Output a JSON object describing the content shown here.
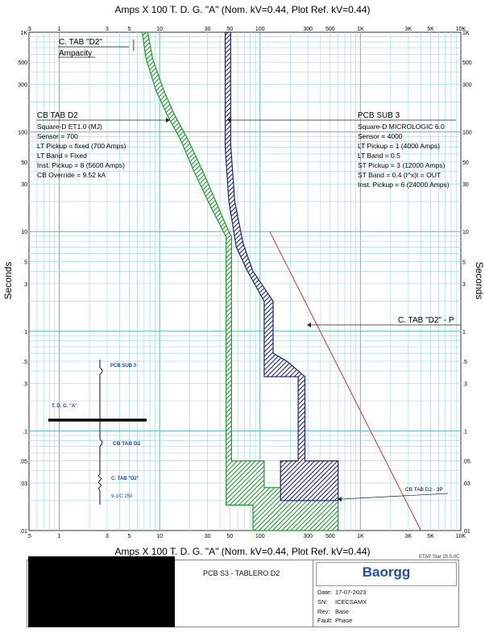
{
  "chart_data": {
    "type": "line",
    "title": "Amps  X  100   T. D. G. \"A\" (Nom. kV=0.44, Plot Ref. kV=0.44)",
    "xlabel": "Amps  X  100   T. D. G. \"A\" (Nom. kV=0.44, Plot Ref. kV=0.44)",
    "ylabel": "Seconds",
    "x_scale": "log",
    "y_scale": "log",
    "xlim": [
      0.5,
      10000
    ],
    "ylim": [
      0.01,
      1000
    ],
    "grid": true,
    "x_tick_labels": [
      {
        "v": 0.5,
        "t": ".5"
      },
      {
        "v": 1,
        "t": "1"
      },
      {
        "v": 3,
        "t": "3"
      },
      {
        "v": 5,
        "t": "5"
      },
      {
        "v": 10,
        "t": "10"
      },
      {
        "v": 30,
        "t": "30"
      },
      {
        "v": 50,
        "t": "50"
      },
      {
        "v": 100,
        "t": "100"
      },
      {
        "v": 300,
        "t": "300"
      },
      {
        "v": 500,
        "t": "500"
      },
      {
        "v": 1000,
        "t": "1K"
      },
      {
        "v": 3000,
        "t": "3K"
      },
      {
        "v": 5000,
        "t": "5K"
      },
      {
        "v": 10000,
        "t": "10K"
      }
    ],
    "y_tick_labels": [
      {
        "v": 1000,
        "t": "1K"
      },
      {
        "v": 500,
        "t": "500"
      },
      {
        "v": 300,
        "t": "300"
      },
      {
        "v": 100,
        "t": "100"
      },
      {
        "v": 50,
        "t": "50"
      },
      {
        "v": 30,
        "t": "30"
      },
      {
        "v": 10,
        "t": "10"
      },
      {
        "v": 5,
        "t": "5"
      },
      {
        "v": 3,
        "t": "3"
      },
      {
        "v": 1,
        "t": "1"
      },
      {
        "v": 0.5,
        "t": ".5"
      },
      {
        "v": 0.3,
        "t": ".3"
      },
      {
        "v": 0.1,
        "t": ".1"
      },
      {
        "v": 0.05,
        "t": ".05"
      },
      {
        "v": 0.03,
        "t": ".03"
      },
      {
        "v": 0.01,
        "t": ".01"
      }
    ],
    "series": [
      {
        "name": "CB TAB D2",
        "color": "#1f9a2f",
        "band_upper": [
          [
            7.6,
            1000
          ],
          [
            8.5,
            550
          ],
          [
            11,
            260
          ],
          [
            14,
            150
          ],
          [
            19,
            85
          ],
          [
            27,
            40
          ],
          [
            38,
            18
          ],
          [
            50,
            9.5
          ],
          [
            52,
            9
          ],
          [
            52,
            0.05
          ],
          [
            110,
            0.05
          ],
          [
            110,
            0.027
          ],
          [
            210,
            0.027
          ],
          [
            210,
            0.02
          ],
          [
            600,
            0.02
          ],
          [
            600,
            0.01
          ]
        ],
        "band_lower": [
          [
            6.7,
            1000
          ],
          [
            7.3,
            550
          ],
          [
            9.2,
            260
          ],
          [
            11.8,
            150
          ],
          [
            16,
            85
          ],
          [
            22,
            40
          ],
          [
            32,
            18
          ],
          [
            45,
            9.2
          ],
          [
            46,
            9
          ],
          [
            46,
            0.018
          ],
          [
            85,
            0.018
          ],
          [
            85,
            0.01
          ]
        ]
      },
      {
        "name": "PCB SUB 3",
        "color": "#1a237e",
        "band_upper": [
          [
            51,
            1000
          ],
          [
            51,
            75
          ],
          [
            56,
            20
          ],
          [
            68,
            7.5
          ],
          [
            85,
            4
          ],
          [
            135,
            2
          ],
          [
            135,
            0.6
          ],
          [
            185,
            0.5
          ],
          [
            280,
            0.35
          ],
          [
            280,
            0.05
          ],
          [
            600,
            0.05
          ],
          [
            600,
            0.02
          ]
        ],
        "band_lower": [
          [
            45,
            1000
          ],
          [
            45,
            70
          ],
          [
            49,
            20
          ],
          [
            58,
            7
          ],
          [
            75,
            4
          ],
          [
            110,
            2
          ],
          [
            110,
            0.35
          ],
          [
            240,
            0.35
          ],
          [
            240,
            0.05
          ],
          [
            160,
            0.05
          ],
          [
            160,
            0.02
          ]
        ]
      },
      {
        "name": "C. TAB \"D2\" - P",
        "color": "#c0392b",
        "points": [
          [
            125,
            10
          ],
          [
            4000,
            0.01
          ]
        ]
      }
    ],
    "ampacity_marker": {
      "x": 5.5,
      "y_range": [
        650,
        850
      ],
      "color": "#c0392b"
    },
    "annotations": {
      "ampacity_title": "C. TAB \"D2\"",
      "ampacity_sub": "Ampacity",
      "cb_tab_title": "CB TAB D2",
      "cb_tab_lines": [
        "Square-D  ET1.0 (MJ)",
        "Sensor = 700",
        "LT Pickup = fixed (700 Amps)",
        "LT Band = Fixed",
        "Inst. Pickup = 8 (5600 Amps)",
        "CB Override = 9.52 kA"
      ],
      "pcb_title": "PCB SUB 3",
      "pcb_lines": [
        "Square-D  MICROLOGIC 6.0",
        "Sensor = 4000",
        "LT Pickup = 1 (4000 Amps)",
        "LT Band = 0.5",
        "ST Pickup = 3 (12000 Amps)",
        "ST Band = 0.4  (I^x)t = OUT",
        "Inst. Pickup = 6 (24000 Amps)"
      ],
      "ctab_p": "C. TAB \"D2\" - P",
      "cb_3p": "CB TAB D2 - 3P"
    },
    "one_line": {
      "pcb_sub3": "PCB SUB 3",
      "bus": "T. D. G. \"A\"",
      "cb_tab": "CB TAB D2",
      "cable": "C. TAB \"D2\"",
      "cable_size": "9-1/C 250"
    }
  },
  "footer": {
    "version": "ETAP Star 20.5.0C",
    "project_title": "PCB S3 - TABLERO D2",
    "logo": "Baorgg",
    "date_label": "Date:",
    "date": "17-07-2023",
    "sn_label": "SN:",
    "sn": "ICECSAMX",
    "rev_label": "Rev:",
    "rev": "Base",
    "fault_label": "Fault:",
    "fault": "Phase"
  }
}
